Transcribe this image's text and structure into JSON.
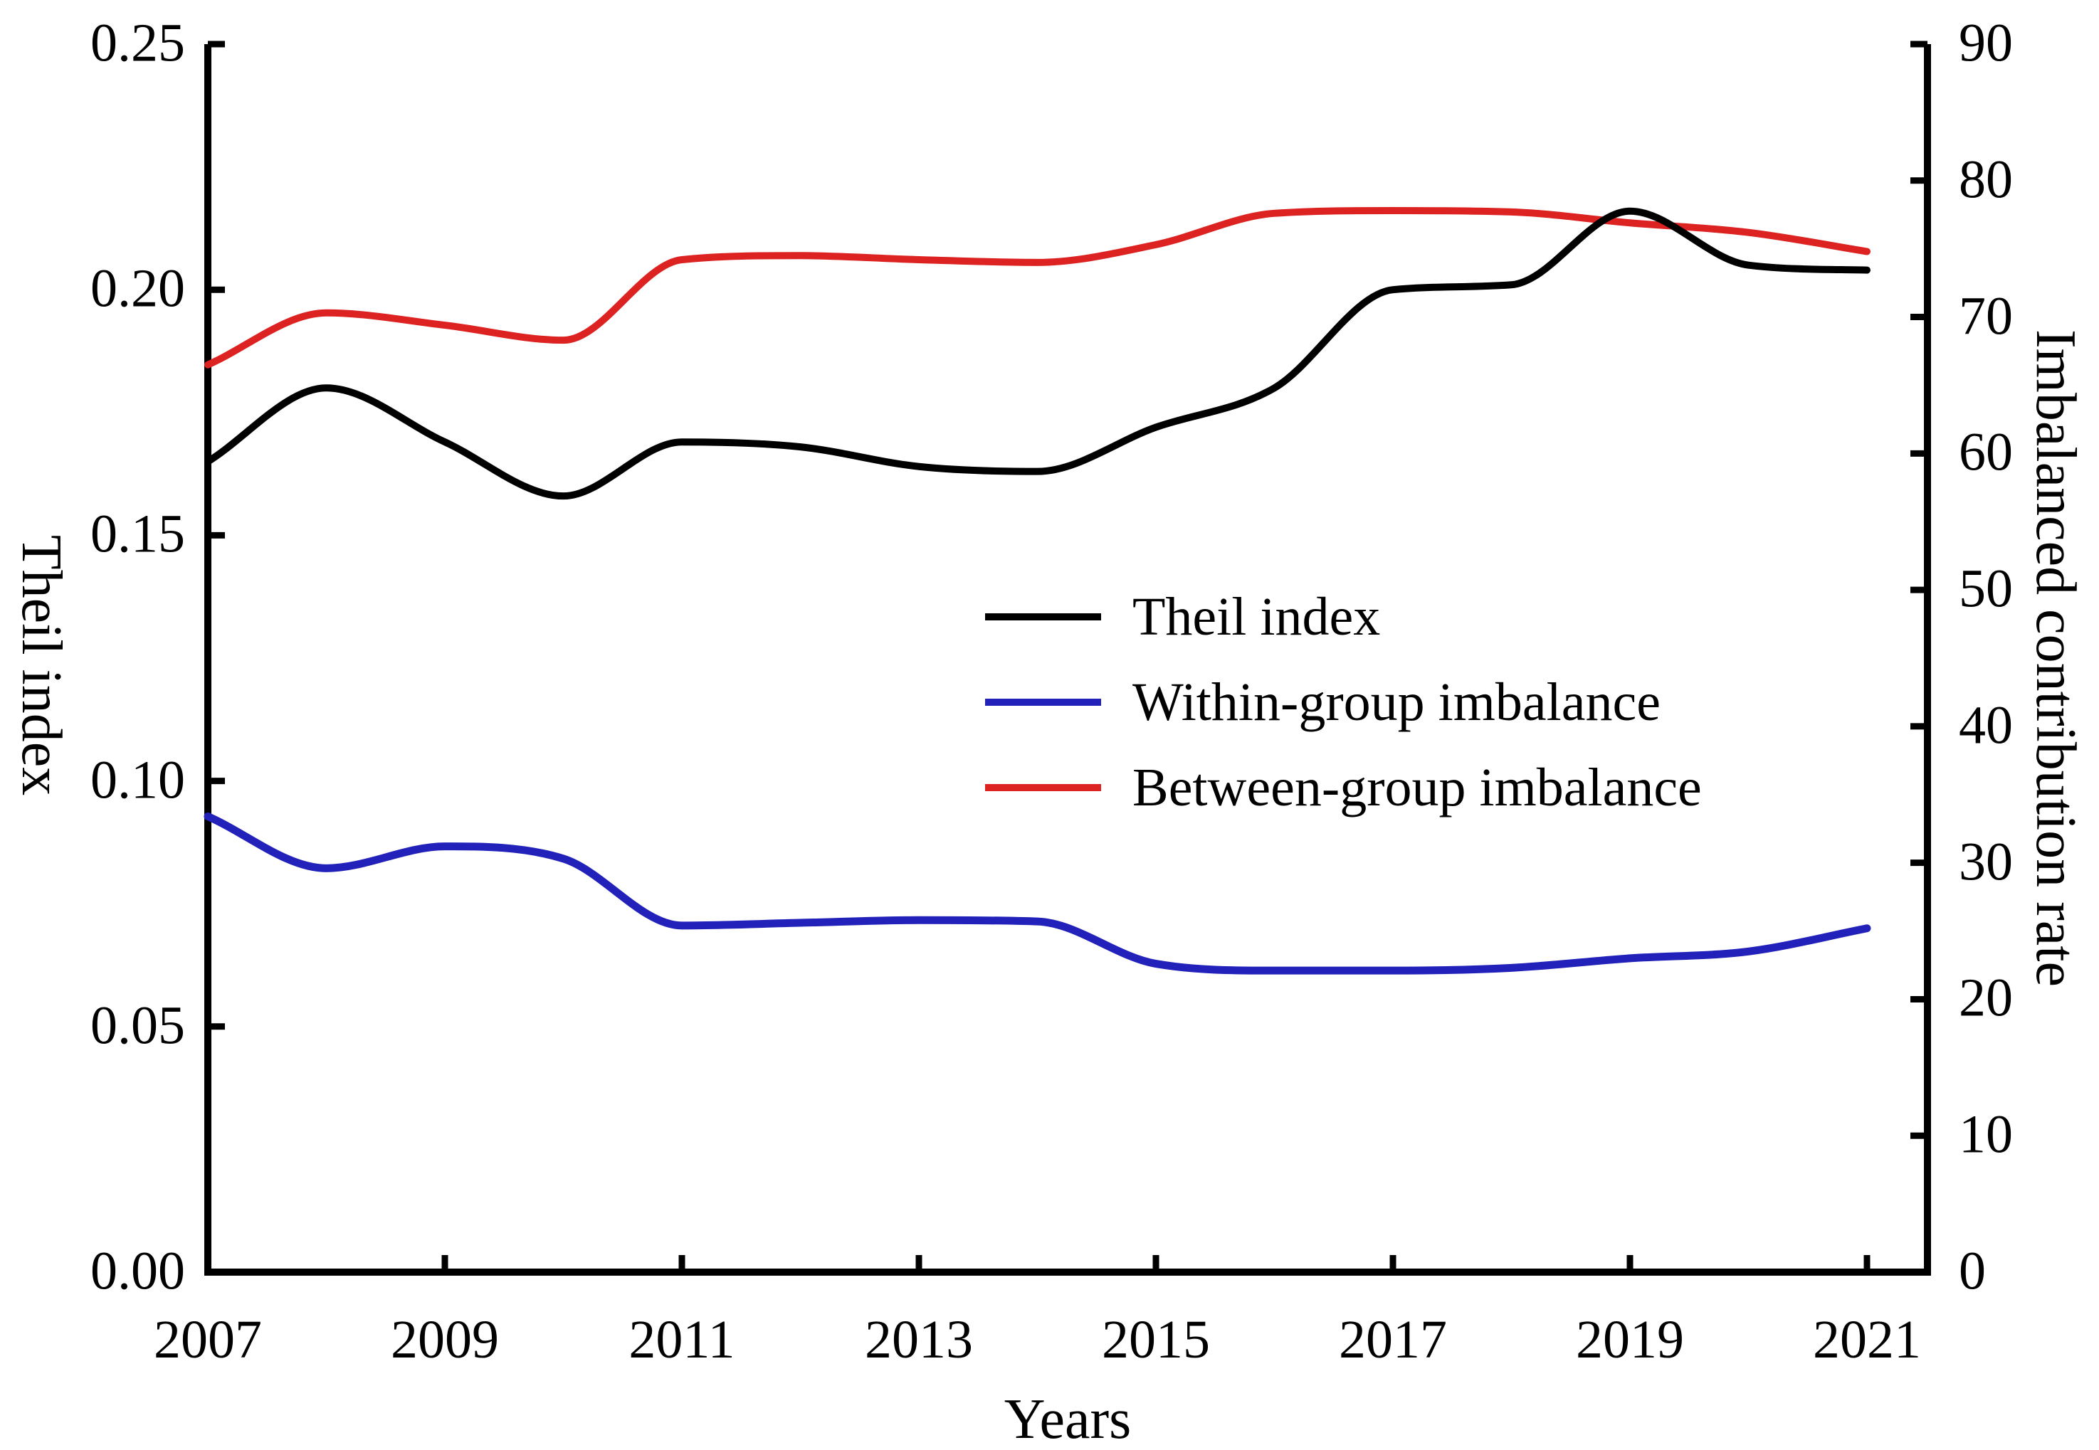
{
  "chart_data": {
    "type": "line",
    "title": "",
    "xlabel": "Years",
    "ylabel_left": "Theil index",
    "ylabel_right": "Imbalanced contribution rate",
    "x": [
      2007,
      2008,
      2009,
      2010,
      2011,
      2012,
      2013,
      2014,
      2015,
      2016,
      2017,
      2018,
      2019,
      2020,
      2021
    ],
    "x_tick_labels": [
      "2007",
      "2009",
      "2011",
      "2013",
      "2015",
      "2017",
      "2019",
      "2021"
    ],
    "ylim_left": [
      0,
      0.25
    ],
    "ytick_labels_left": [
      "0.00",
      "0.05",
      "0.10",
      "0.15",
      "0.20",
      "0.25"
    ],
    "ylim_right": [
      0,
      90
    ],
    "ytick_labels_right": [
      "0",
      "10",
      "20",
      "30",
      "40",
      "50",
      "60",
      "70",
      "80",
      "90"
    ],
    "grid": false,
    "legend_position": "center",
    "axis_color": "#000000",
    "series": [
      {
        "key": "theil",
        "name": "Theil index",
        "axis": "left",
        "color": "#000000",
        "values": [
          0.165,
          0.18,
          0.169,
          0.158,
          0.169,
          0.168,
          0.164,
          0.163,
          0.172,
          0.18,
          0.2,
          0.201,
          0.216,
          0.205,
          0.204
        ]
      },
      {
        "key": "within",
        "name": "Within-group imbalance",
        "axis": "right",
        "color": "#2222BB",
        "values": [
          33.4,
          29.6,
          31.2,
          30.3,
          25.4,
          25.6,
          25.8,
          25.7,
          22.6,
          22.1,
          22.1,
          22.3,
          23.0,
          23.5,
          25.2
        ]
      },
      {
        "key": "between",
        "name": "Between-group imbalance",
        "axis": "right",
        "color": "#DD2222",
        "values": [
          66.5,
          70.3,
          69.4,
          68.3,
          74.2,
          74.5,
          74.2,
          74.0,
          75.3,
          77.6,
          77.8,
          77.7,
          76.9,
          76.2,
          74.8
        ]
      }
    ]
  }
}
